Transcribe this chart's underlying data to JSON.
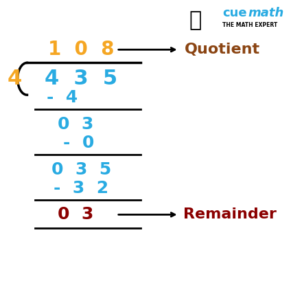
{
  "bg_color": "#ffffff",
  "quotient": "1  0  8",
  "quotient_color": "#f5a623",
  "quotient_label": "Quotient",
  "quotient_label_color": "#8B4513",
  "divisor": "4",
  "divisor_color": "#f5a623",
  "dividend": "4  3  5",
  "dividend_color": "#29ABE2",
  "step1_sub": "-  4",
  "step1_result": "0  3",
  "step2_sub": "-  0",
  "step2_result": "0  3  5",
  "step3_sub": "-  3  2",
  "step3_final": "0  3",
  "step_color": "#29ABE2",
  "remainder_label": "Remainder",
  "remainder_label_color": "#8B0000",
  "final_color": "#8B0000",
  "line_color": "#000000",
  "logo_text1_part1": "cue",
  "logo_text1_part2": "math",
  "logo_text2": "THE MATH EXPERT",
  "logo_color1": "#29ABE2",
  "logo_color2": "#000000"
}
